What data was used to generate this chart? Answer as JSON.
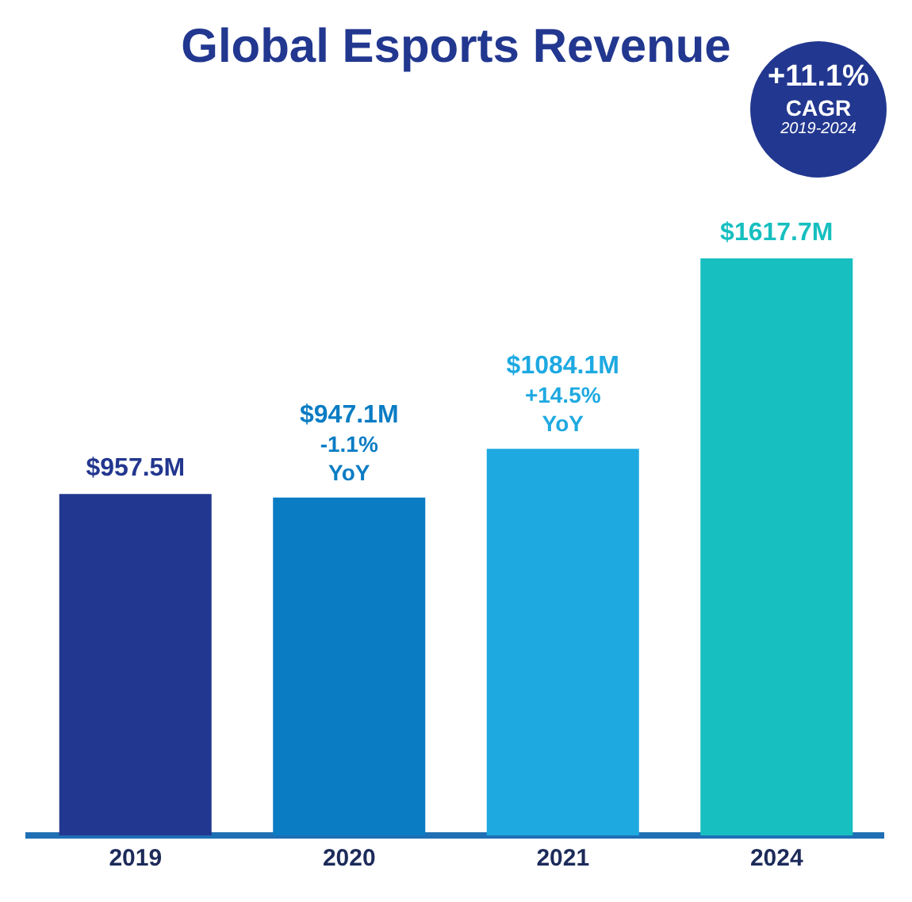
{
  "chart_data": {
    "type": "bar",
    "title": "Global Esports Revenue",
    "categories": [
      "2019",
      "2020",
      "2021",
      "2024"
    ],
    "values": [
      957.5,
      947.1,
      1084.1,
      1617.7
    ],
    "colors": [
      "#22378f",
      "#0a7cc4",
      "#1ea9e1",
      "#17bfc0"
    ],
    "value_labels": [
      "$957.5M",
      "$947.1M",
      "$1084.1M",
      "$1617.7M"
    ],
    "annotations": [
      "+11.1%",
      "CAGR",
      "2019-2024",
      {
        "text": "-1.1%\nYoY",
        "x": "2020",
        "y": 947.1
      },
      {
        "text": "+14.5%\nYoY",
        "x": "2021",
        "y": 1084.1
      }
    ],
    "legend": false,
    "grid": false
  }
}
